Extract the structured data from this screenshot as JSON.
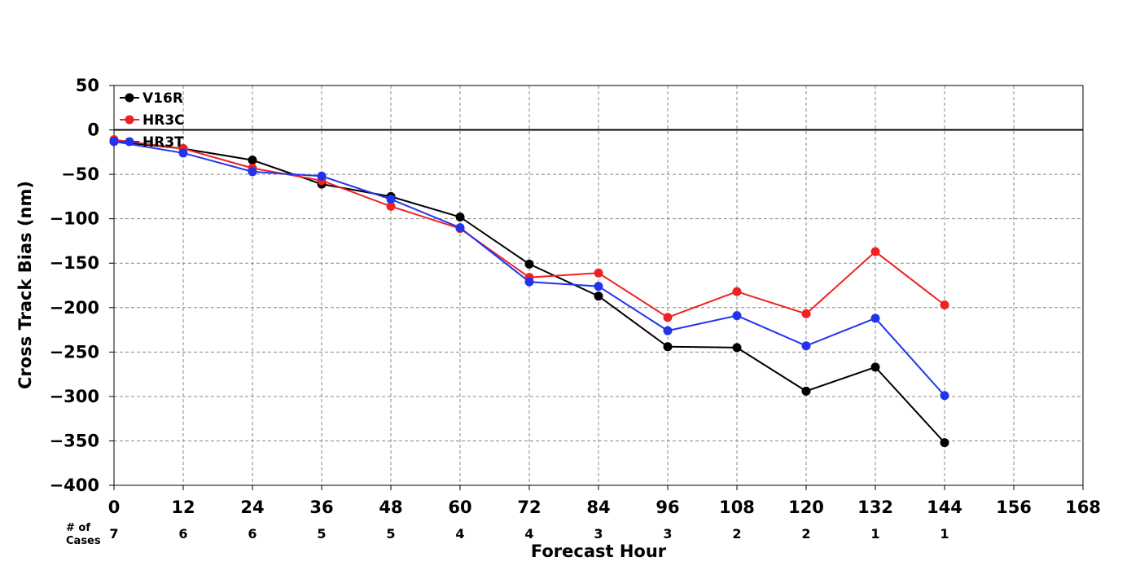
{
  "chart_data": {
    "type": "line",
    "xlabel": "Forecast Hour",
    "ylabel": "Cross Track Bias (nm)",
    "xlim": [
      0,
      168
    ],
    "ylim": [
      -400,
      50
    ],
    "x_ticks": [
      0,
      12,
      24,
      36,
      48,
      60,
      72,
      84,
      96,
      108,
      120,
      132,
      144,
      156,
      168
    ],
    "y_ticks": [
      50,
      0,
      -50,
      -100,
      -150,
      -200,
      -250,
      -300,
      -350,
      -400
    ],
    "grid": true,
    "zero_line": true,
    "legend_position": "top-left",
    "x": [
      0,
      12,
      24,
      36,
      48,
      60,
      72,
      84,
      96,
      108,
      120,
      132,
      144
    ],
    "series": [
      {
        "name": "V16R",
        "color": "#000000",
        "values": [
          -13,
          -21,
          -34,
          -61,
          -75,
          -98,
          -151,
          -187,
          -244,
          -245,
          -294,
          -267,
          -352
        ]
      },
      {
        "name": "HR3C",
        "color": "#ee2222",
        "values": [
          -11,
          -21,
          -43,
          -57,
          -86,
          -111,
          -166,
          -161,
          -211,
          -182,
          -207,
          -137,
          -197
        ]
      },
      {
        "name": "HR3T",
        "color": "#2233ee",
        "values": [
          -13,
          -26,
          -47,
          -52,
          -78,
          -110,
          -171,
          -176,
          -226,
          -209,
          -243,
          -212,
          -299
        ]
      }
    ],
    "cases": {
      "label_line1": "# of",
      "label_line2": "Cases",
      "x": [
        0,
        12,
        24,
        36,
        48,
        60,
        72,
        84,
        96,
        108,
        120,
        132,
        144
      ],
      "values": [
        "7",
        "6",
        "6",
        "5",
        "5",
        "4",
        "4",
        "3",
        "3",
        "2",
        "2",
        "1",
        "1"
      ]
    }
  }
}
